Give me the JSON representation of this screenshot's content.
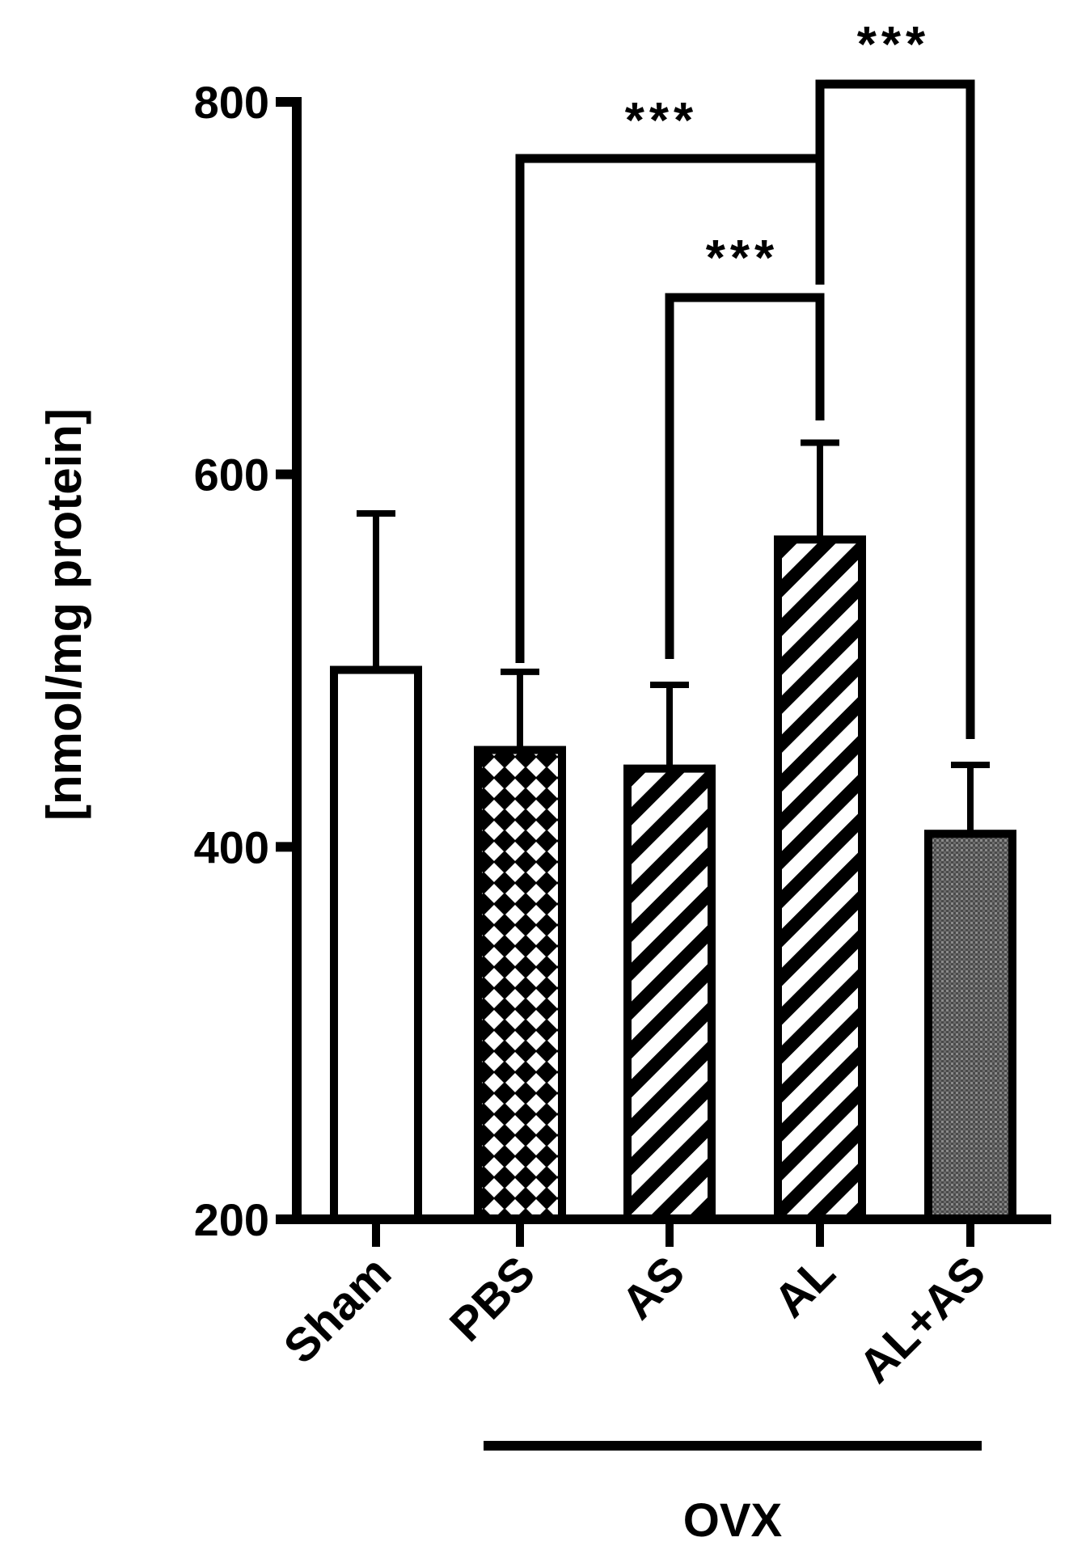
{
  "chart_data": {
    "type": "bar",
    "ylabel": "[nmol/mg protein]",
    "ylim": [
      200,
      800
    ],
    "yticks": [
      200,
      400,
      600,
      800
    ],
    "categories": [
      "Sham",
      "PBS",
      "AS",
      "AL",
      "AL+AS"
    ],
    "values": [
      495,
      452,
      442,
      565,
      407
    ],
    "errors": [
      84,
      42,
      45,
      52,
      37
    ],
    "patterns": [
      "none",
      "diamond-checker",
      "diagonal-stripes",
      "diagonal-stripes",
      "dark-stipple"
    ],
    "colors": {
      "axis": "#000000",
      "bar_fill": "#ffffff",
      "dark_fill": "#555555"
    },
    "group": {
      "label": "OVX",
      "members": [
        "PBS",
        "AS",
        "AL",
        "AL+AS"
      ]
    },
    "significance": [
      {
        "from": "PBS",
        "to": "AL",
        "label": "***"
      },
      {
        "from": "AS",
        "to": "AL",
        "label": "***"
      },
      {
        "from": "AL",
        "to": "AL+AS",
        "label": "***"
      }
    ]
  }
}
